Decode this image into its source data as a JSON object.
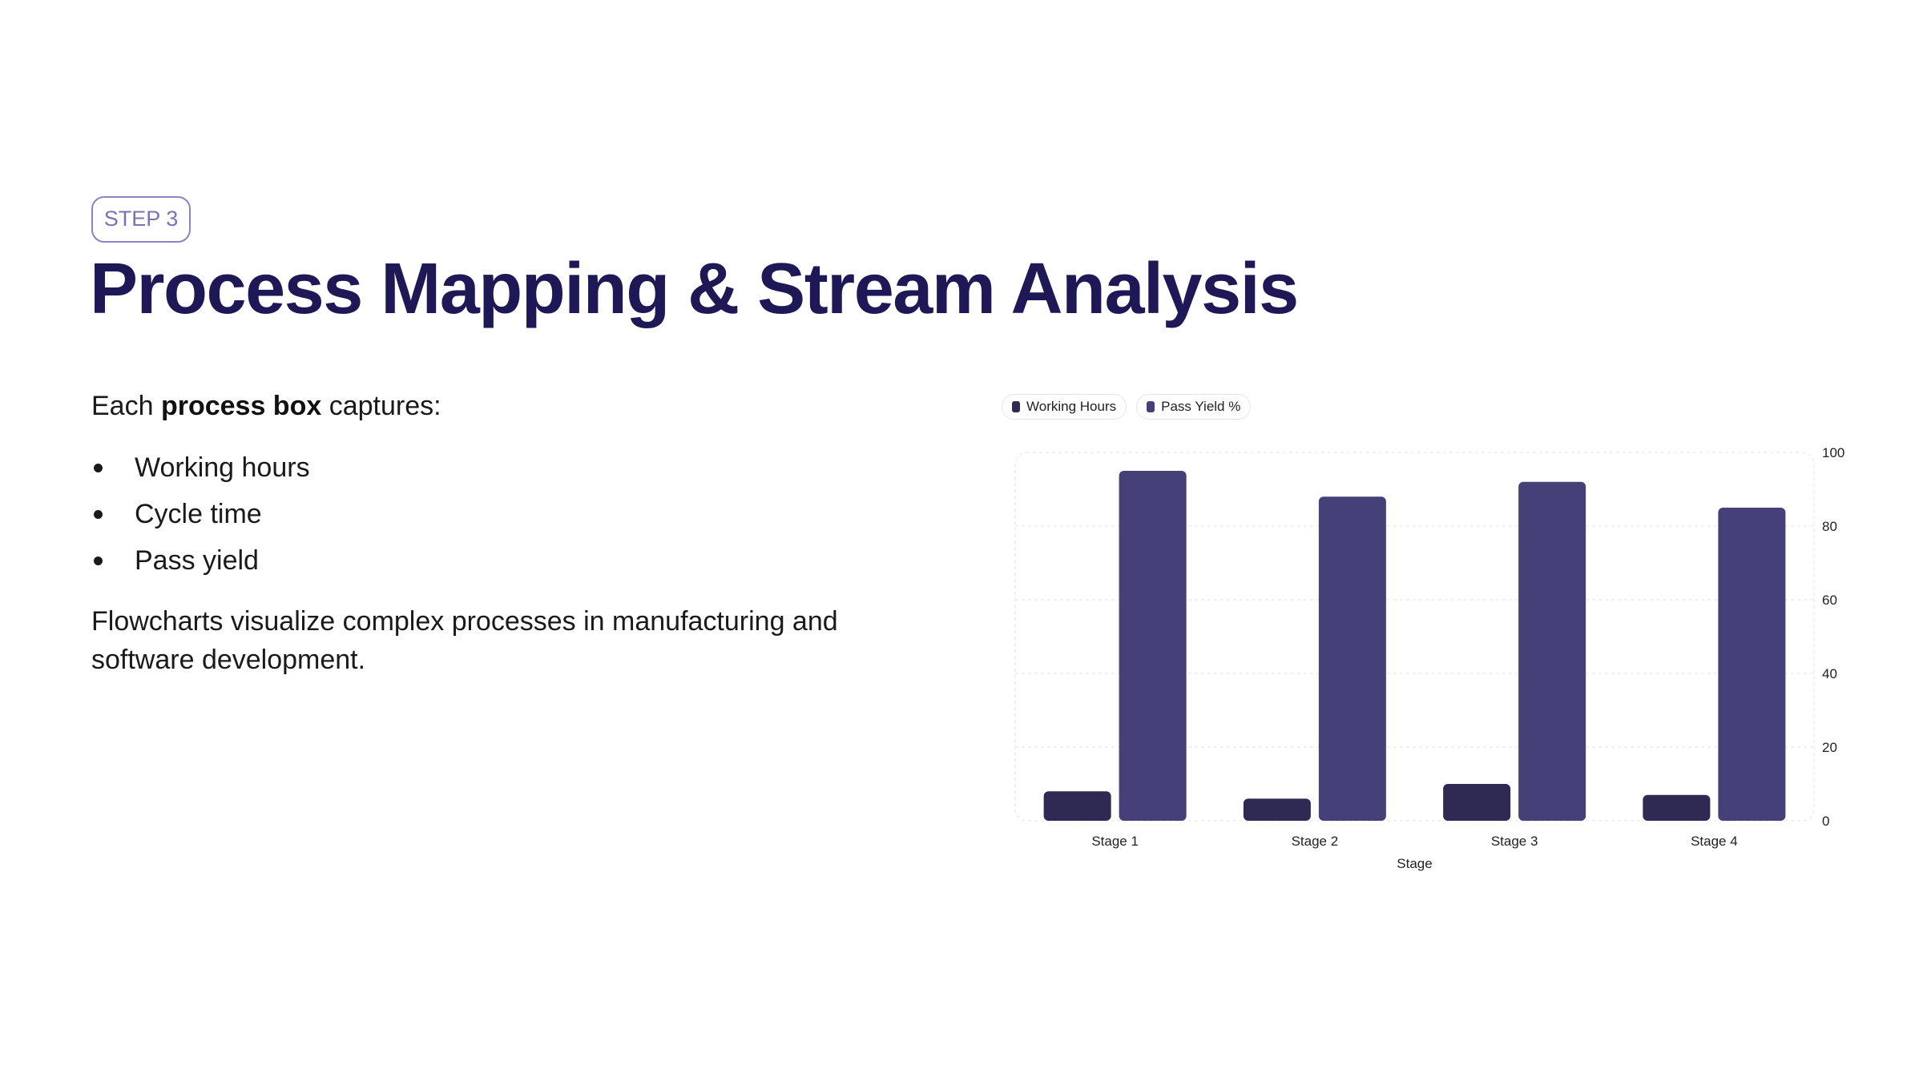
{
  "slide": {
    "step_label": "STEP 3",
    "title": "Process Mapping & Stream Analysis",
    "intro_prefix": "Each ",
    "intro_bold": "process box",
    "intro_suffix": " captures:",
    "bullets": [
      "Working hours",
      "Cycle time",
      "Pass yield"
    ],
    "paragraph": "Flowcharts visualize complex processes in manufacturing and software development."
  },
  "chart_data": {
    "type": "bar",
    "categories": [
      "Stage 1",
      "Stage 2",
      "Stage 3",
      "Stage 4"
    ],
    "series": [
      {
        "name": "Working Hours",
        "color": "#2e2a54",
        "values": [
          8,
          6,
          10,
          7
        ]
      },
      {
        "name": "Pass Yield %",
        "color": "#454178",
        "values": [
          95,
          88,
          92,
          85
        ]
      }
    ],
    "xlabel": "Stage",
    "ylabel": "",
    "ylim": [
      0,
      100
    ],
    "yticks": [
      0,
      20,
      40,
      60,
      80,
      100
    ],
    "y_axis_side": "right",
    "grid": true,
    "legend_position": "top-left"
  }
}
